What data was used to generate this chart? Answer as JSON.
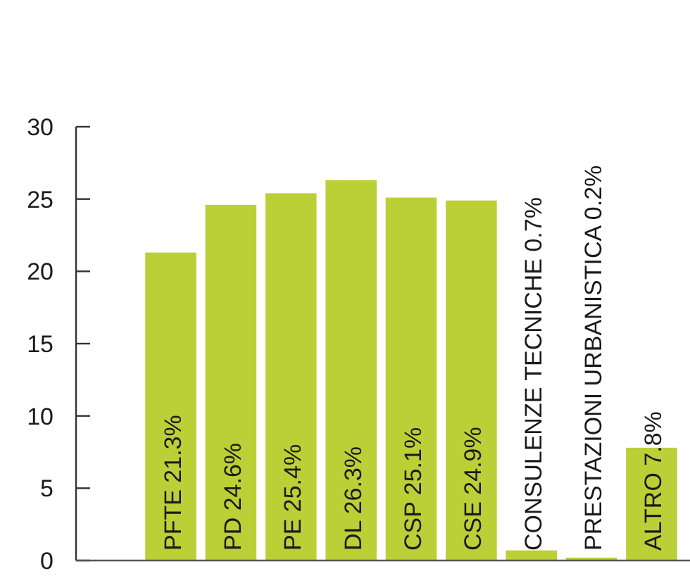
{
  "chart_data": {
    "type": "bar",
    "categories": [
      "PFTE 21.3%",
      "PD 24.6%",
      "PE 25.4%",
      "DL 26.3%",
      "CSP 25.1%",
      "CSE 24.9%",
      "CONSULENZE TECNICHE 0.7%",
      "PRESTAZIONI URBANISTICA 0.2%",
      "ALTRO 7.8%"
    ],
    "values": [
      21.3,
      24.6,
      25.4,
      26.3,
      25.1,
      24.9,
      0.7,
      0.2,
      7.8
    ],
    "color": "#bbcf37",
    "ylim": [
      0,
      30
    ],
    "yticks": [
      0,
      5,
      10,
      15,
      20,
      25,
      30
    ],
    "grid": false
  }
}
